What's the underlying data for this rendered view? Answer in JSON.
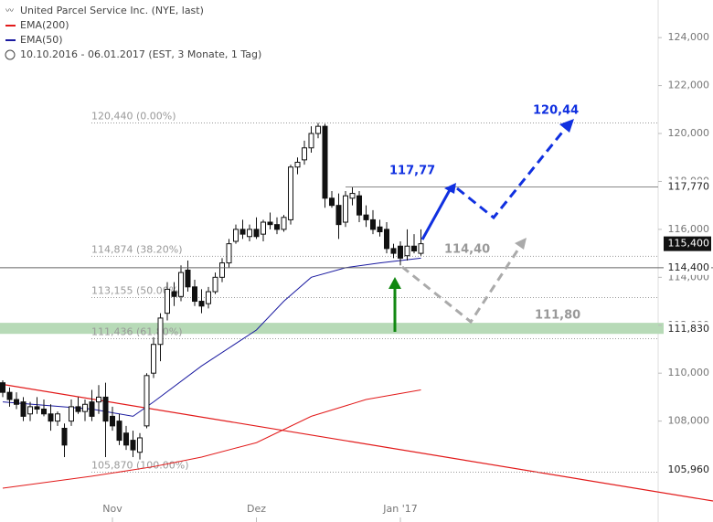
{
  "chart_data": {
    "type": "candlestick",
    "title": "United Parcel Service Inc. (NYE, last)",
    "subtitle": "10.10.2016 - 06.01.2017 (EST, 3 Monate, 1 Tag)",
    "categories": [
      null,
      null,
      null,
      null,
      null,
      null,
      null,
      null,
      null,
      null,
      null,
      null,
      null,
      null,
      null,
      null,
      "Nov",
      null,
      null,
      null,
      null,
      null,
      null,
      null,
      null,
      null,
      null,
      null,
      null,
      null,
      null,
      null,
      null,
      null,
      null,
      null,
      null,
      "Dez",
      null,
      null,
      null,
      null,
      null,
      null,
      null,
      null,
      null,
      null,
      null,
      null,
      null,
      null,
      null,
      null,
      null,
      null,
      null,
      null,
      "Jan '17",
      null,
      null,
      null
    ],
    "open": [
      109.6,
      109.2,
      108.9,
      108.8,
      108.3,
      108.6,
      108.5,
      108.3,
      108.0,
      107.7,
      108.0,
      108.6,
      108.4,
      108.8,
      108.8,
      109.0,
      108.2,
      108.0,
      107.5,
      107.2,
      106.7,
      107.8,
      110.0,
      111.2,
      112.5,
      113.4,
      113.2,
      114.3,
      113.6,
      113.0,
      112.9,
      113.4,
      114.0,
      114.6,
      115.5,
      116.0,
      115.7,
      116.0,
      115.8,
      116.3,
      116.2,
      116.0,
      116.4,
      118.6,
      118.9,
      119.4,
      120.0,
      120.3,
      117.3,
      117.0,
      116.3,
      117.3,
      117.4,
      116.6,
      116.4,
      116.1,
      116.0,
      115.2,
      115.3,
      114.9,
      115.3,
      115.0
    ],
    "high": [
      109.7,
      109.4,
      109.2,
      109.0,
      108.8,
      109.0,
      108.9,
      108.7,
      108.4,
      107.9,
      108.9,
      109.0,
      108.9,
      109.3,
      109.5,
      109.6,
      108.6,
      108.3,
      107.8,
      107.6,
      107.5,
      110.0,
      111.5,
      112.5,
      113.8,
      113.8,
      114.5,
      114.7,
      113.9,
      113.5,
      113.6,
      114.2,
      114.8,
      115.6,
      116.2,
      116.4,
      116.2,
      116.5,
      116.4,
      116.7,
      116.5,
      116.6,
      118.7,
      119.0,
      119.7,
      120.3,
      120.44,
      120.4,
      117.6,
      117.5,
      117.6,
      117.77,
      117.6,
      117.0,
      116.8,
      116.4,
      116.3,
      115.4,
      115.5,
      116.0,
      115.8,
      116.0
    ],
    "low": [
      109.0,
      108.6,
      108.5,
      108.0,
      108.0,
      108.3,
      108.2,
      107.6,
      107.8,
      106.5,
      107.8,
      108.3,
      108.0,
      108.0,
      108.3,
      106.5,
      107.6,
      107.0,
      106.8,
      106.5,
      106.4,
      107.7,
      109.8,
      110.5,
      112.2,
      112.8,
      113.0,
      113.4,
      112.8,
      112.5,
      112.7,
      113.3,
      113.8,
      114.4,
      115.4,
      115.6,
      115.5,
      115.6,
      115.5,
      116.0,
      115.8,
      115.9,
      116.2,
      118.3,
      118.7,
      119.2,
      119.8,
      116.9,
      116.9,
      115.6,
      116.1,
      117.0,
      116.3,
      116.1,
      115.8,
      115.7,
      115.0,
      114.8,
      114.5,
      114.7,
      115.0,
      114.9
    ],
    "close": [
      109.2,
      108.9,
      108.7,
      108.2,
      108.6,
      108.5,
      108.3,
      108.0,
      108.3,
      107.0,
      108.6,
      108.4,
      108.7,
      108.2,
      109.0,
      108.0,
      107.8,
      107.2,
      107.0,
      106.8,
      107.3,
      109.9,
      111.2,
      112.3,
      113.5,
      113.2,
      114.2,
      113.6,
      113.0,
      112.8,
      113.4,
      114.0,
      114.6,
      115.4,
      116.0,
      115.8,
      116.0,
      115.7,
      116.3,
      116.2,
      116.0,
      116.5,
      118.6,
      118.8,
      119.4,
      120.0,
      120.3,
      117.3,
      117.0,
      116.2,
      117.4,
      117.5,
      116.6,
      116.4,
      116.0,
      115.9,
      115.2,
      115.0,
      114.8,
      115.3,
      115.1,
      115.4
    ],
    "lines": [
      {
        "name": "EMA(200)",
        "color": "#e21a1a",
        "x": [
          0,
          13,
          22,
          29,
          37,
          45,
          53,
          61
        ],
        "values": [
          105.2,
          105.7,
          106.1,
          106.5,
          107.1,
          108.2,
          108.9,
          109.3
        ]
      },
      {
        "name": "EMA(50)",
        "color": "#1a1aa0",
        "x": [
          0,
          13,
          19,
          22,
          29,
          37,
          41,
          45,
          50,
          55,
          61
        ],
        "values": [
          108.8,
          108.5,
          108.2,
          108.8,
          110.3,
          111.8,
          113.0,
          114.0,
          114.4,
          114.6,
          114.8
        ]
      }
    ],
    "ylim": [
      103.79,
      125.57
    ],
    "yticks": [
      {
        "value": 108,
        "label": "108,000"
      },
      {
        "value": 110,
        "label": "110,000"
      },
      {
        "value": 112,
        "label": "112,000"
      },
      {
        "value": 114,
        "label": "114,000"
      },
      {
        "value": 116,
        "label": "116,000"
      },
      {
        "value": 118,
        "label": "118,000"
      },
      {
        "value": 120,
        "label": "120,000"
      },
      {
        "value": 122,
        "label": "122,000"
      },
      {
        "value": 124,
        "label": "124,000"
      }
    ],
    "fib_levels": [
      {
        "value": 120.44,
        "label": "120,440 (0.00%)"
      },
      {
        "value": 114.874,
        "label": "114,874 (38.20%)"
      },
      {
        "value": 113.155,
        "label": "113,155 (50.00%)"
      },
      {
        "value": 111.436,
        "label": "111,436 (61.80%)"
      },
      {
        "value": 105.87,
        "label": "105,870 (100.00%)"
      }
    ],
    "zone": [
      111.64,
      112.1
    ],
    "price_marks": [
      {
        "value": 117.77,
        "label": "117,770"
      },
      {
        "value": 115.4,
        "label": "115,400",
        "highlight": true
      },
      {
        "value": 114.4,
        "label": "114,400"
      },
      {
        "value": 111.83,
        "label": "111,830"
      },
      {
        "value": 105.96,
        "label": "105,960"
      }
    ],
    "annotations": [
      "120,44",
      "117,77",
      "114,40",
      "111,80"
    ]
  }
}
